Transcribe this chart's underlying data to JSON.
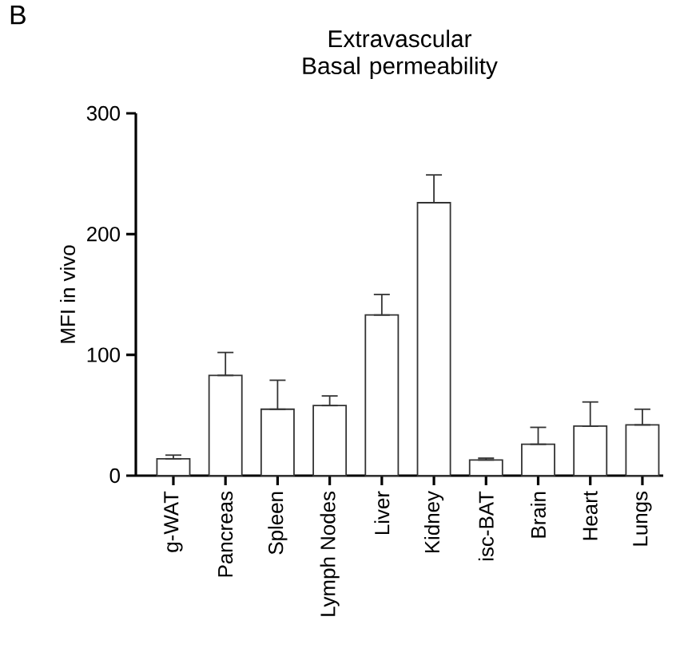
{
  "chart_data": {
    "type": "bar",
    "title": "Extravascular Basal permeability",
    "ylabel": "MFI in vivo",
    "annotations": [
      "B"
    ],
    "categories": [
      "g-WAT",
      "Pancreas",
      "Spleen",
      "Lymph Nodes",
      "Liver",
      "Kidney",
      "isc-BAT",
      "Brain",
      "Heart",
      "Lungs"
    ],
    "values": [
      14,
      83,
      55,
      58,
      133,
      226,
      13,
      26,
      41,
      42
    ],
    "errors": [
      [
        14,
        17
      ],
      [
        83,
        102
      ],
      [
        55,
        79
      ],
      [
        58,
        66
      ],
      [
        133,
        150
      ],
      [
        226,
        249
      ],
      [
        13,
        14.5
      ],
      [
        26,
        40
      ],
      [
        41,
        61
      ],
      [
        42,
        55
      ]
    ],
    "color": "#ffffff",
    "ylim": [
      0,
      300
    ],
    "yticks": [
      0,
      100,
      200,
      300
    ]
  }
}
